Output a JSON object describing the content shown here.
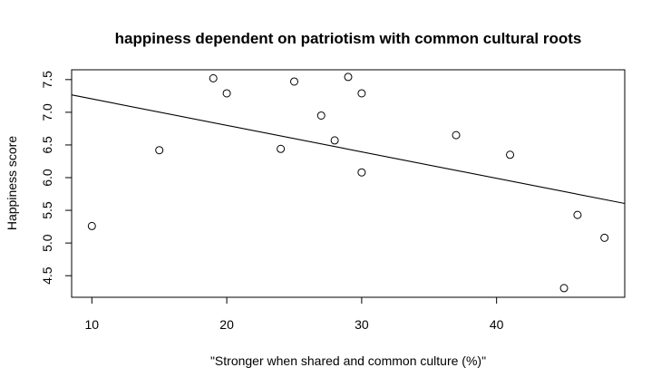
{
  "chart_data": {
    "type": "scatter",
    "title": "happiness dependent on patriotism with common cultural roots",
    "xlabel": "\"Stronger when shared and common culture (%)\"",
    "ylabel": "Happiness score",
    "xlim": [
      8.5,
      49.5
    ],
    "ylim": [
      4.17,
      7.65
    ],
    "xticks": [
      "10",
      "20",
      "30",
      "40"
    ],
    "yticks": [
      "4.5",
      "5.0",
      "5.5",
      "6.0",
      "6.5",
      "7.0",
      "7.5"
    ],
    "grid": false,
    "points": [
      {
        "x": 10,
        "y": 5.26
      },
      {
        "x": 15,
        "y": 6.42
      },
      {
        "x": 19,
        "y": 7.52
      },
      {
        "x": 20,
        "y": 7.29
      },
      {
        "x": 24,
        "y": 6.44
      },
      {
        "x": 25,
        "y": 7.47
      },
      {
        "x": 27,
        "y": 6.95
      },
      {
        "x": 28,
        "y": 6.57
      },
      {
        "x": 29,
        "y": 7.54
      },
      {
        "x": 30,
        "y": 7.29
      },
      {
        "x": 30,
        "y": 6.08
      },
      {
        "x": 37,
        "y": 6.65
      },
      {
        "x": 41,
        "y": 6.35
      },
      {
        "x": 45,
        "y": 4.31
      },
      {
        "x": 46,
        "y": 5.43
      },
      {
        "x": 48,
        "y": 5.08
      }
    ],
    "fit_line": {
      "intercept": 7.61,
      "slope": -0.0405
    }
  }
}
